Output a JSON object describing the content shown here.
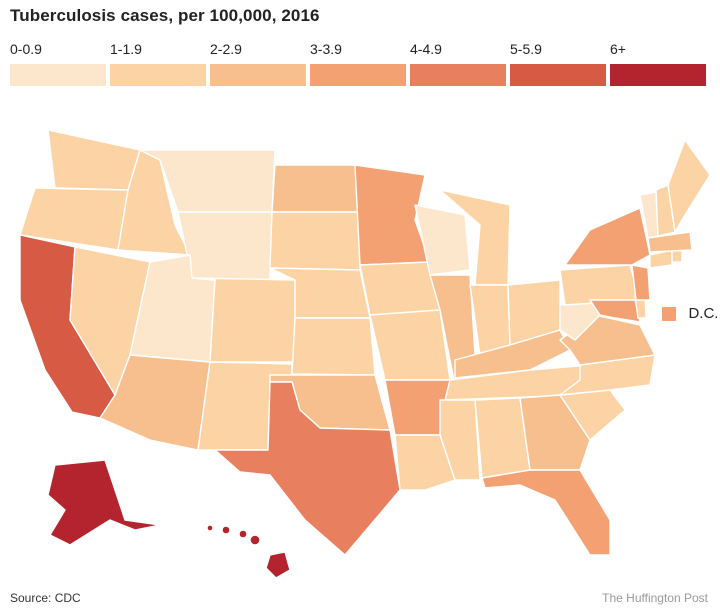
{
  "title": "Tuberculosis cases, per 100,000, 2016",
  "legend": [
    {
      "label": "0-0.9",
      "color": "#fde7cc"
    },
    {
      "label": "1-1.9",
      "color": "#fcd3a5"
    },
    {
      "label": "2-2.9",
      "color": "#f8bf8e"
    },
    {
      "label": "3-3.9",
      "color": "#f3a173"
    },
    {
      "label": "4-4.9",
      "color": "#e8805f"
    },
    {
      "label": "5-5.9",
      "color": "#d65a44"
    },
    {
      "label": "6+",
      "color": "#b4242f"
    }
  ],
  "dc": {
    "label": "D.C.",
    "category": "3-3.9"
  },
  "states": {
    "WA": "1-1.9",
    "OR": "1-1.9",
    "CA": "5-5.9",
    "NV": "1-1.9",
    "ID": "1-1.9",
    "MT": "0-0.9",
    "WY": "0-0.9",
    "UT": "0-0.9",
    "AZ": "2-2.9",
    "CO": "1-1.9",
    "NM": "1-1.9",
    "ND": "2-2.9",
    "SD": "1-1.9",
    "NE": "1-1.9",
    "KS": "1-1.9",
    "OK": "2-2.9",
    "TX": "4-4.9",
    "MN": "3-3.9",
    "IA": "1-1.9",
    "MO": "1-1.9",
    "AR": "3-3.9",
    "LA": "1-1.9",
    "WI": "0-0.9",
    "IL": "2-2.9",
    "MI": "1-1.9",
    "IN": "1-1.9",
    "OH": "1-1.9",
    "KY": "2-2.9",
    "TN": "1-1.9",
    "MS": "1-1.9",
    "AL": "1-1.9",
    "GA": "2-2.9",
    "FL": "3-3.9",
    "SC": "1-1.9",
    "NC": "1-1.9",
    "VA": "2-2.9",
    "WV": "0-0.9",
    "PA": "1-1.9",
    "NY": "3-3.9",
    "NJ": "3-3.9",
    "MD": "3-3.9",
    "DE": "1-1.9",
    "CT": "1-1.9",
    "RI": "1-1.9",
    "MA": "2-2.9",
    "VT": "0-0.9",
    "NH": "1-1.9",
    "ME": "1-1.9",
    "AK": "6+",
    "HI": "6+"
  },
  "source": "Source: CDC",
  "credit": "The Huffington Post"
}
